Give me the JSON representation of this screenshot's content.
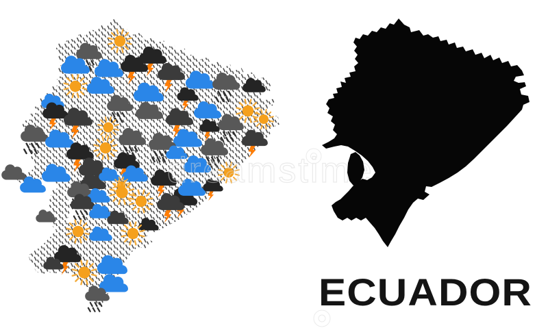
{
  "title": "ECUADOR",
  "watermark": {
    "text": "dreamstime",
    "registered": "®"
  },
  "colors": {
    "background": "#FFFFFF",
    "sun_core": "#F5A01D",
    "sun_rays": "#F4AC3C",
    "cloud_blue": "#2A86E8",
    "cloud_gray": "#585858",
    "cloud_dark": "#3B3B3B",
    "cloud_black": "#242424",
    "lightning": "#FF7D05",
    "rain": "#2E2E2E",
    "drizzle": "#3F3F3F",
    "map_fill": "#060606",
    "title_color": "#141414",
    "watermark_color": "#D8D8D8"
  },
  "mosaic_map": {
    "icons": [
      [
        "cloud-gray-rain",
        130,
        74,
        0.9
      ],
      [
        "sun",
        175,
        60,
        1
      ],
      [
        "cloud-black-bolt",
        223,
        80,
        0.95
      ],
      [
        "cloud-black-bolt",
        196,
        92,
        0.95
      ],
      [
        "cloud-blue",
        110,
        94,
        1
      ],
      [
        "cloud-blue",
        159,
        99,
        1
      ],
      [
        "cloud-dark-bolt",
        250,
        104,
        0.95
      ],
      [
        "cloud-blue",
        292,
        116,
        1
      ],
      [
        "cloud-gray-rain",
        330,
        118,
        0.95
      ],
      [
        "cloud-black",
        371,
        124,
        0.8
      ],
      [
        "sun",
        110,
        126,
        1
      ],
      [
        "cloud-blue",
        147,
        124,
        0.95
      ],
      [
        "cloud-blue",
        217,
        134,
        1.05
      ],
      [
        "cloud-black-bolt",
        274,
        137,
        0.75
      ],
      [
        "cloud-blue",
        77,
        147,
        0.8
      ],
      [
        "cloud-black-bolt",
        81,
        161,
        0.9
      ],
      [
        "cloud-dark-bolt",
        114,
        170,
        1
      ],
      [
        "cloud-gray-rain",
        175,
        150,
        0.9
      ],
      [
        "cloud-gray",
        218,
        161,
        0.95
      ],
      [
        "cloud-dark-bolt",
        262,
        170,
        0.95
      ],
      [
        "cloud-blue",
        303,
        160,
        0.95
      ],
      [
        "sun",
        362,
        162,
        1
      ],
      [
        "cloud-gray-rain",
        337,
        178,
        0.9
      ],
      [
        "cloud-black-bolt",
        306,
        183,
        0.7
      ],
      [
        "sun",
        385,
        174,
        0.85
      ],
      [
        "sun",
        158,
        186,
        0.9
      ],
      [
        "cloud-gray-rain",
        50,
        194,
        0.95
      ],
      [
        "cloud-blue",
        87,
        202,
        1
      ],
      [
        "cloud-gray-rain",
        193,
        199,
        0.95
      ],
      [
        "cloud-blue",
        274,
        201,
        1
      ],
      [
        "cloud-gray-rain",
        237,
        206,
        0.95
      ],
      [
        "cloud-gray-rain",
        313,
        214,
        0.95
      ],
      [
        "cloud-dark-bolt",
        372,
        201,
        0.9
      ],
      [
        "sun",
        154,
        216,
        1
      ],
      [
        "cloud-black-bolt",
        117,
        220,
        0.95
      ],
      [
        "cloud-gray",
        20,
        251,
        0.85
      ],
      [
        "cloud-black-bolt",
        185,
        234,
        0.9
      ],
      [
        "cloud-blue",
        258,
        222,
        0.75
      ],
      [
        "cloud-dark",
        136,
        243,
        1
      ],
      [
        "cloud-blue",
        288,
        239,
        0.95
      ],
      [
        "cloud-dark-rain",
        136,
        264,
        0.9
      ],
      [
        "cloud-blue",
        160,
        254,
        0.75
      ],
      [
        "cloud-blue",
        197,
        253,
        0.9
      ],
      [
        "cloud-blue",
        82,
        252,
        1
      ],
      [
        "cloud-blue",
        48,
        269,
        0.9
      ],
      [
        "sun",
        177,
        271,
        0.75
      ],
      [
        "cloud-black-bolt",
        239,
        259,
        0.9
      ],
      [
        "sun",
        334,
        252,
        0.9
      ],
      [
        "cloud-black-bolt",
        268,
        287,
        0.95
      ],
      [
        "cloud-blue",
        280,
        273,
        0.95
      ],
      [
        "cloud-black-bolt",
        311,
        270,
        0.7
      ],
      [
        "cloud-gray-rain",
        117,
        276,
        0.9
      ],
      [
        "cloud-blue",
        144,
        285,
        0.8
      ],
      [
        "sun",
        178,
        281,
        1.05
      ],
      [
        "sun",
        206,
        294,
        1
      ],
      [
        "cloud-dark-bolt",
        249,
        294,
        0.95
      ],
      [
        "cloud-dark-rain",
        121,
        294,
        0.85
      ],
      [
        "cloud-blue",
        147,
        308,
        0.8
      ],
      [
        "cloud-dark",
        172,
        317,
        0.75
      ],
      [
        "cloud-gray",
        67,
        315,
        0.7
      ],
      [
        "cloud-black",
        217,
        327,
        0.7
      ],
      [
        "sun",
        114,
        338,
        1
      ],
      [
        "sun",
        194,
        341,
        1
      ],
      [
        "cloud-blue",
        147,
        341,
        0.8
      ],
      [
        "cloud-black-bolt",
        99,
        370,
        0.95
      ],
      [
        "cloud-dark",
        78,
        384,
        0.7
      ],
      [
        "sun",
        123,
        398,
        1.05
      ],
      [
        "cloud-blue",
        164,
        386,
        1.05
      ],
      [
        "cloud-blue",
        166,
        413,
        1
      ],
      [
        "cloud-gray-rain",
        142,
        428,
        0.85
      ]
    ]
  }
}
